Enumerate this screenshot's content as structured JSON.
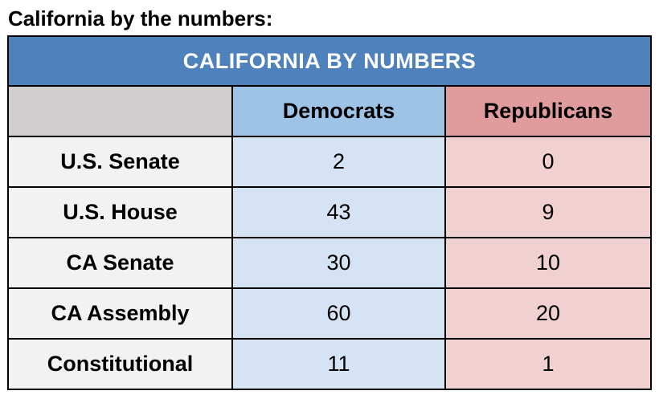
{
  "heading": "California by the numbers:",
  "table": {
    "title": "CALIFORNIA BY NUMBERS",
    "columns": [
      "",
      "Democrats",
      "Republicans"
    ],
    "rows": [
      {
        "label": "U.S. Senate",
        "democrats": "2",
        "republicans": "0"
      },
      {
        "label": "U.S. House",
        "democrats": "43",
        "republicans": "9"
      },
      {
        "label": "CA Senate",
        "democrats": "30",
        "republicans": "10"
      },
      {
        "label": "CA Assembly",
        "democrats": "60",
        "republicans": "20"
      },
      {
        "label": "Constitutional",
        "democrats": "11",
        "republicans": "1"
      }
    ]
  },
  "colors": {
    "title_background": "#4f81bd",
    "header_blank_background": "#d0cece",
    "democrats_header_background": "#9dc3e6",
    "republicans_header_background": "#e09c9c",
    "label_background": "#f2f2f2",
    "democrats_cell_background": "#d6e3f4",
    "republicans_cell_background": "#f0d0d0"
  }
}
